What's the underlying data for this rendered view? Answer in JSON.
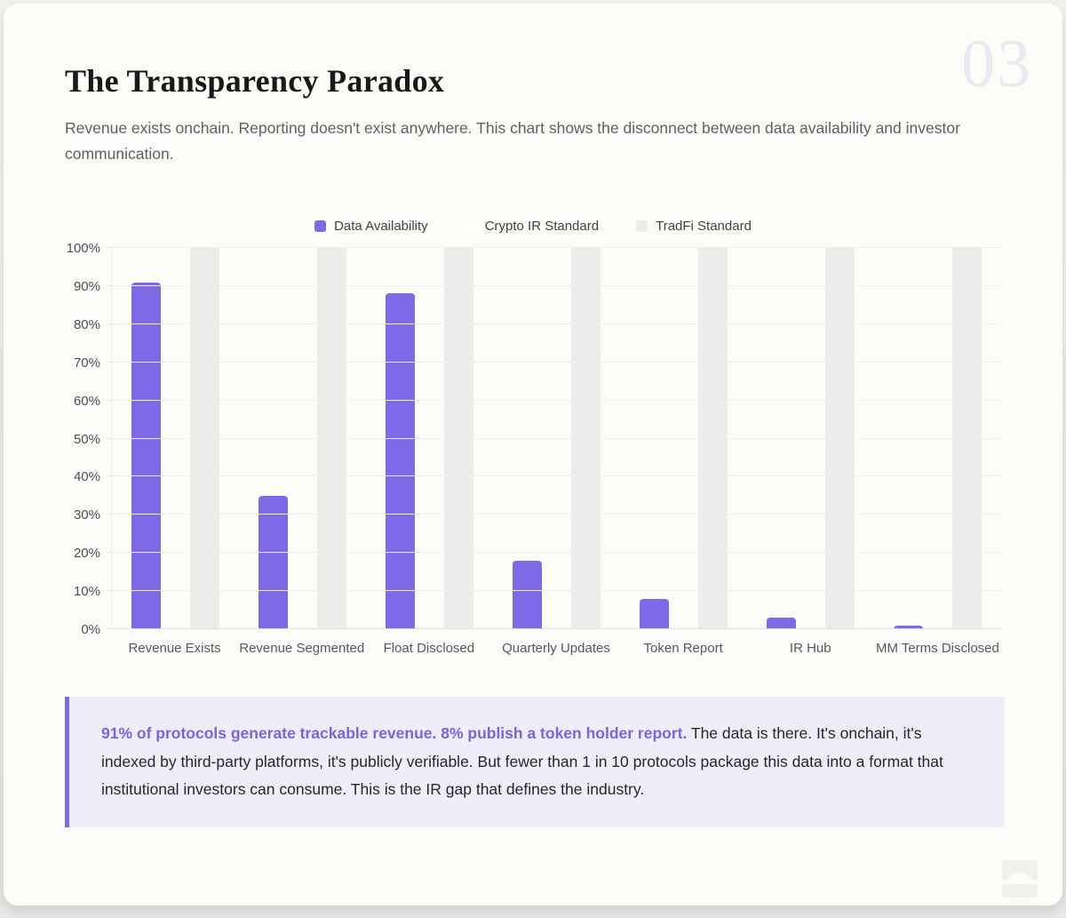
{
  "page": {
    "number": "03",
    "title": "The Transparency Paradox",
    "subtitle": "Revenue exists onchain. Reporting doesn't exist anywhere. This chart shows the disconnect between data availability and investor communication."
  },
  "colors": {
    "accent_purple": "#7c6ae8",
    "bar_grey": "#ececea",
    "bar_white": "#ffffff",
    "callout_bg": "#efedfa",
    "callout_lead_purple": "#7467df",
    "page_number_grey": "#e7eaf3"
  },
  "chart_data": {
    "type": "bar",
    "title": "",
    "xlabel": "",
    "ylabel": "",
    "ylim": [
      0,
      100
    ],
    "ytick_step": 10,
    "ytick_format": "percent",
    "grid": true,
    "legend_position": "top",
    "categories": [
      "Revenue Exists",
      "Revenue Segmented",
      "Float Disclosed",
      "Quarterly Updates",
      "Token Report",
      "IR Hub",
      "MM Terms Disclosed"
    ],
    "series": [
      {
        "name": "Data Availability",
        "color": "#7c6ae8",
        "values": [
          91,
          35,
          88,
          18,
          8,
          3,
          1
        ]
      },
      {
        "name": "Crypto IR Standard",
        "color": "#ffffff",
        "values": [
          0,
          0,
          0,
          0,
          0,
          0,
          0
        ]
      },
      {
        "name": "TradFi Standard",
        "color": "#ececea",
        "values": [
          100,
          100,
          100,
          100,
          100,
          100,
          100
        ]
      }
    ]
  },
  "callout": {
    "lead": "91% of protocols generate trackable revenue. 8% publish a token holder report.",
    "body": " The data is there. It's onchain, it's indexed by third-party platforms, it's publicly verifiable. But fewer than 1 in 10 protocols package this data into a format that institutional investors can consume. This is the IR gap that defines the industry."
  },
  "footer": {
    "logo_icon": "arch-logo"
  }
}
